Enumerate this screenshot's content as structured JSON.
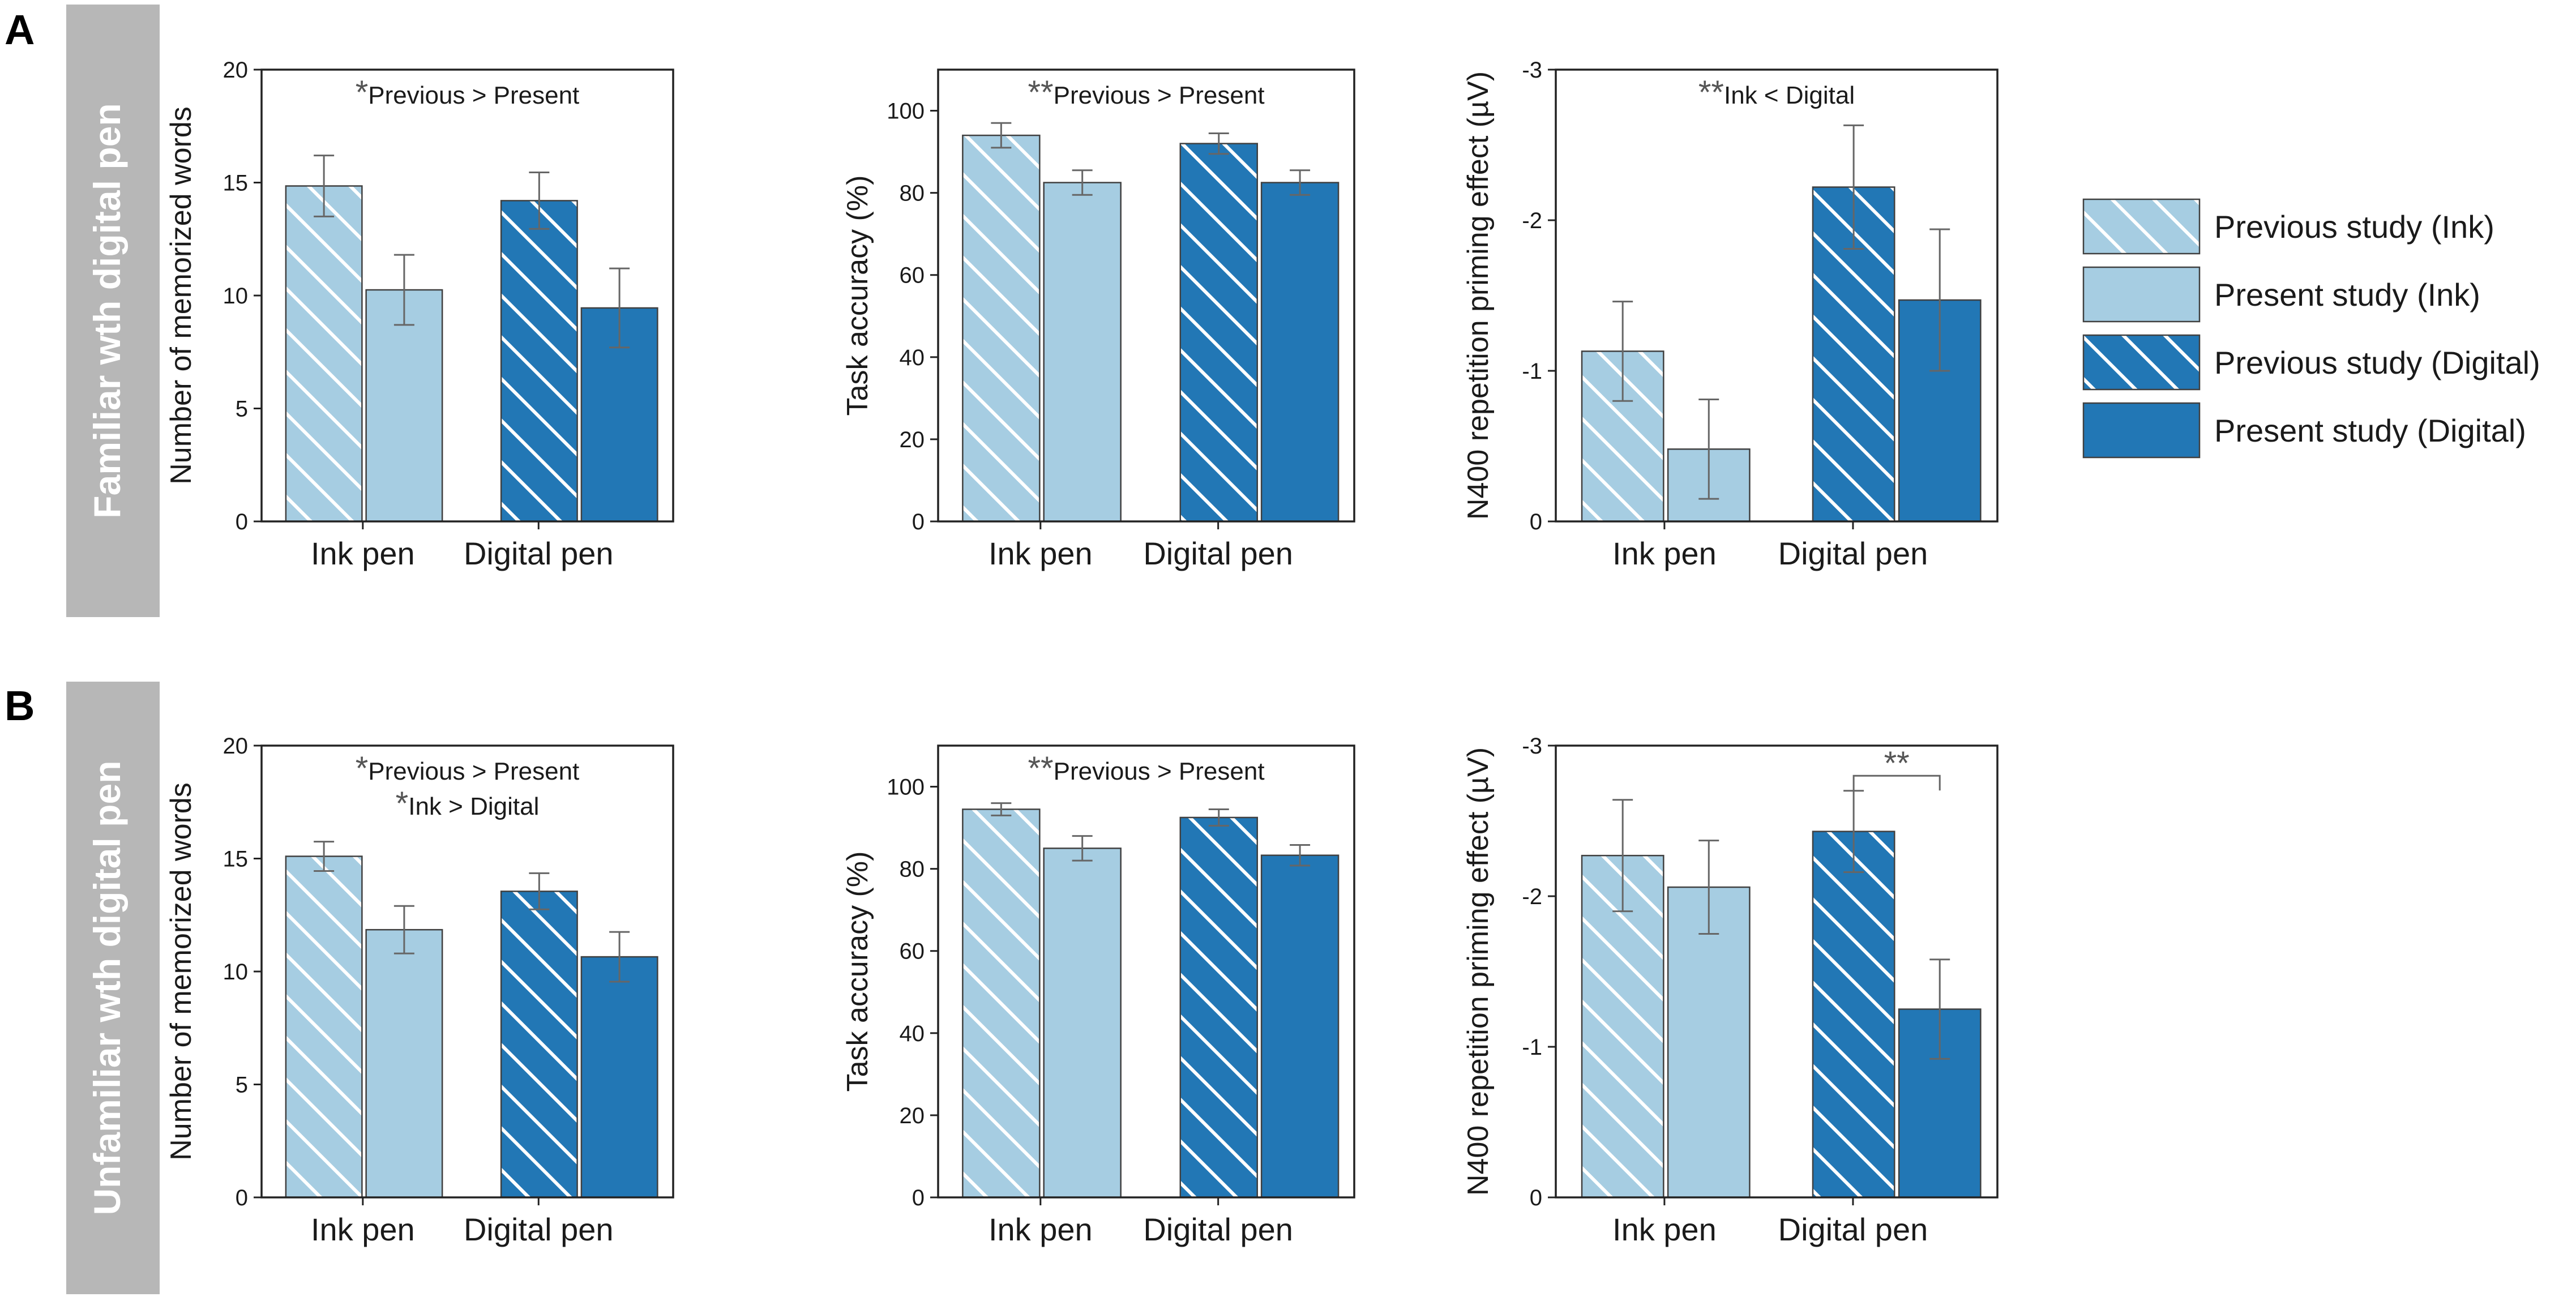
{
  "legend": {
    "items": [
      {
        "label": "Previous study (Ink)",
        "series": "prev_ink"
      },
      {
        "label": "Present study (Ink)",
        "series": "pres_ink"
      },
      {
        "label": "Previous study (Digital)",
        "series": "prev_dig"
      },
      {
        "label": "Present study (Digital)",
        "series": "pres_dig"
      }
    ]
  },
  "colors": {
    "light": "#a6cde2",
    "dark": "#2277b5",
    "bar_edge": "#404040",
    "axis": "#222222",
    "text": "#1a1a1a",
    "errorbar": "#666666",
    "hatch": "#ffffff",
    "panel_label_bg": "#b7b7b7",
    "panel_label_text": "#ffffff",
    "sig_mark": "#555555"
  },
  "panels": [
    {
      "letter": "A",
      "label": "Familiar wth digital pen"
    },
    {
      "letter": "B",
      "label": "Unfamiliar wth digital pen"
    }
  ],
  "chart_data": [
    {
      "panel": "A",
      "type": "bar",
      "ylabel": "Number of memorized words",
      "ylim": [
        0,
        20
      ],
      "yticks": [
        0,
        5,
        10,
        15,
        20
      ],
      "ytick_labels": [
        "0",
        "5",
        "10",
        "15",
        "20"
      ],
      "inverted": false,
      "categories": [
        "Ink pen",
        "Digital pen"
      ],
      "series": [
        {
          "name": "Previous study",
          "values": [
            14.85,
            null
          ],
          "err": [
            1.35,
            null
          ],
          "style": "prev_ink"
        },
        {
          "name": "Present study",
          "values": [
            10.25,
            null
          ],
          "err": [
            1.55,
            null
          ],
          "style": "pres_ink"
        },
        {
          "name": "Previous study",
          "values": [
            null,
            14.2
          ],
          "err": [
            null,
            1.25
          ],
          "style": "prev_dig"
        },
        {
          "name": "Present study",
          "values": [
            null,
            9.45
          ],
          "err": [
            null,
            1.75
          ],
          "style": "pres_dig"
        }
      ],
      "annotations": [
        {
          "stars": "*",
          "text": "Previous > Present"
        }
      ],
      "bracket": null
    },
    {
      "panel": "A",
      "type": "bar",
      "ylabel": "Task accuracy (%)",
      "ylim": [
        0,
        110
      ],
      "yticks": [
        0,
        20,
        40,
        60,
        80,
        100
      ],
      "ytick_labels": [
        "0",
        "20",
        "40",
        "60",
        "80",
        "100"
      ],
      "inverted": false,
      "categories": [
        "Ink pen",
        "Digital pen"
      ],
      "series": [
        {
          "name": "Previous study",
          "values": [
            94,
            null
          ],
          "err": [
            3,
            null
          ],
          "style": "prev_ink"
        },
        {
          "name": "Present study",
          "values": [
            82.5,
            null
          ],
          "err": [
            3,
            null
          ],
          "style": "pres_ink"
        },
        {
          "name": "Previous study",
          "values": [
            null,
            92
          ],
          "err": [
            null,
            2.5
          ],
          "style": "prev_dig"
        },
        {
          "name": "Present study",
          "values": [
            null,
            82.5
          ],
          "err": [
            null,
            3
          ],
          "style": "pres_dig"
        }
      ],
      "annotations": [
        {
          "stars": "**",
          "text": "Previous > Present"
        }
      ],
      "bracket": null
    },
    {
      "panel": "A",
      "type": "bar",
      "ylabel": "N400 repetition priming effect (µV)",
      "ylim": [
        0,
        -3
      ],
      "yticks": [
        0,
        -1,
        -2,
        -3
      ],
      "ytick_labels": [
        "0",
        "-1",
        "-2",
        "-3"
      ],
      "inverted": true,
      "categories": [
        "Ink pen",
        "Digital pen"
      ],
      "series": [
        {
          "name": "Previous study",
          "values": [
            -1.13,
            null
          ],
          "err": [
            0.33,
            null
          ],
          "style": "prev_ink"
        },
        {
          "name": "Present study",
          "values": [
            -0.48,
            null
          ],
          "err": [
            0.33,
            null
          ],
          "style": "pres_ink"
        },
        {
          "name": "Previous study",
          "values": [
            null,
            -2.22
          ],
          "err": [
            null,
            0.41
          ],
          "style": "prev_dig"
        },
        {
          "name": "Present study",
          "values": [
            null,
            -1.47
          ],
          "err": [
            null,
            0.47
          ],
          "style": "pres_dig"
        }
      ],
      "annotations": [
        {
          "stars": "**",
          "text": "Ink < Digital"
        }
      ],
      "bracket": null
    },
    {
      "panel": "B",
      "type": "bar",
      "ylabel": "Number of memorized words",
      "ylim": [
        0,
        20
      ],
      "yticks": [
        0,
        5,
        10,
        15,
        20
      ],
      "ytick_labels": [
        "0",
        "5",
        "10",
        "15",
        "20"
      ],
      "inverted": false,
      "categories": [
        "Ink pen",
        "Digital pen"
      ],
      "series": [
        {
          "name": "Previous study",
          "values": [
            15.1,
            null
          ],
          "err": [
            0.65,
            null
          ],
          "style": "prev_ink"
        },
        {
          "name": "Present study",
          "values": [
            11.85,
            null
          ],
          "err": [
            1.05,
            null
          ],
          "style": "pres_ink"
        },
        {
          "name": "Previous study",
          "values": [
            null,
            13.55
          ],
          "err": [
            null,
            0.8
          ],
          "style": "prev_dig"
        },
        {
          "name": "Present study",
          "values": [
            null,
            10.65
          ],
          "err": [
            null,
            1.1
          ],
          "style": "pres_dig"
        }
      ],
      "annotations": [
        {
          "stars": "*",
          "text": "Previous > Present"
        },
        {
          "stars": "*",
          "text": "Ink > Digital"
        }
      ],
      "bracket": null
    },
    {
      "panel": "B",
      "type": "bar",
      "ylabel": "Task accuracy (%)",
      "ylim": [
        0,
        110
      ],
      "yticks": [
        0,
        20,
        40,
        60,
        80,
        100
      ],
      "ytick_labels": [
        "0",
        "20",
        "40",
        "60",
        "80",
        "100"
      ],
      "inverted": false,
      "categories": [
        "Ink pen",
        "Digital pen"
      ],
      "series": [
        {
          "name": "Previous study",
          "values": [
            94.5,
            null
          ],
          "err": [
            1.5,
            null
          ],
          "style": "prev_ink"
        },
        {
          "name": "Present study",
          "values": [
            85,
            null
          ],
          "err": [
            3,
            null
          ],
          "style": "pres_ink"
        },
        {
          "name": "Previous study",
          "values": [
            null,
            92.5
          ],
          "err": [
            null,
            2
          ],
          "style": "prev_dig"
        },
        {
          "name": "Present study",
          "values": [
            null,
            83.3
          ],
          "err": [
            null,
            2.5
          ],
          "style": "pres_dig"
        }
      ],
      "annotations": [
        {
          "stars": "**",
          "text": "Previous > Present"
        }
      ],
      "bracket": null
    },
    {
      "panel": "B",
      "type": "bar",
      "ylabel": "N400 repetition priming effect (µV)",
      "ylim": [
        0,
        -3
      ],
      "yticks": [
        0,
        -1,
        -2,
        -3
      ],
      "ytick_labels": [
        "0",
        "-1",
        "-2",
        "-3"
      ],
      "inverted": true,
      "categories": [
        "Ink pen",
        "Digital pen"
      ],
      "series": [
        {
          "name": "Previous study",
          "values": [
            -2.27,
            null
          ],
          "err": [
            0.37,
            null
          ],
          "style": "prev_ink"
        },
        {
          "name": "Present study",
          "values": [
            -2.06,
            null
          ],
          "err": [
            0.31,
            null
          ],
          "style": "pres_ink"
        },
        {
          "name": "Previous study",
          "values": [
            null,
            -2.43
          ],
          "err": [
            null,
            0.27
          ],
          "style": "prev_dig"
        },
        {
          "name": "Present study",
          "values": [
            null,
            -1.25
          ],
          "err": [
            null,
            0.33
          ],
          "style": "pres_dig"
        }
      ],
      "annotations": [],
      "bracket": {
        "stars": "**",
        "from_bar": 2,
        "to_bar": 3,
        "level": -2.8
      }
    }
  ]
}
